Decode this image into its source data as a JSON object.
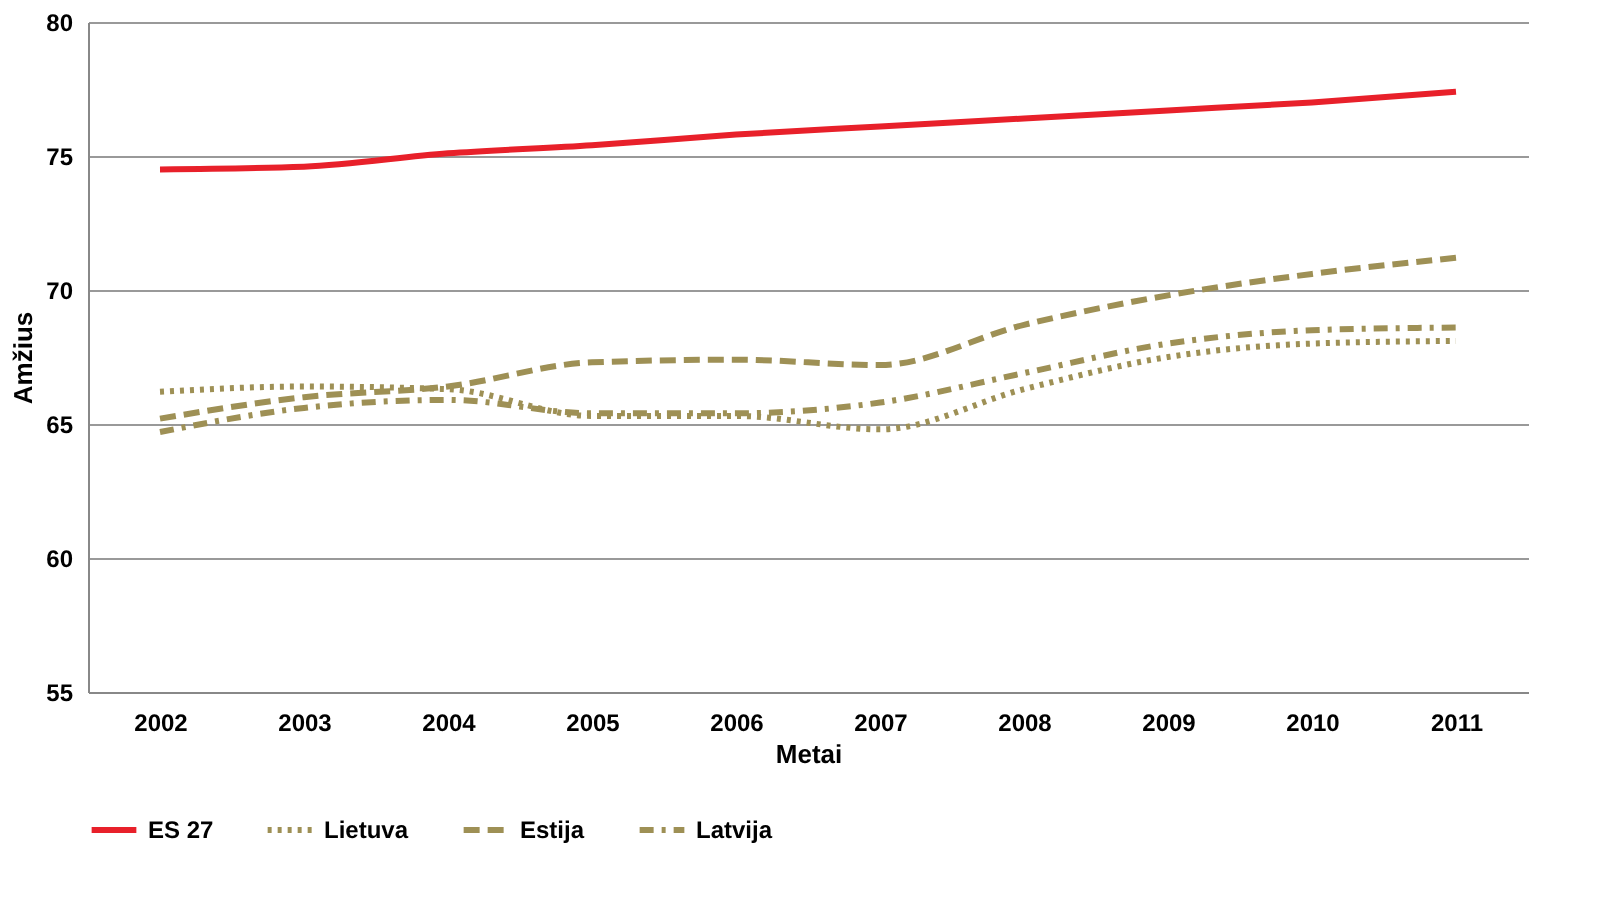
{
  "chart_data": {
    "type": "line",
    "xlabel": "Metai",
    "ylabel": "Amžius",
    "categories": [
      "2002",
      "2003",
      "2004",
      "2005",
      "2006",
      "2007",
      "2008",
      "2009",
      "2010",
      "2011"
    ],
    "series": [
      {
        "name": "ES 27",
        "color": "#e8202a",
        "line_style": "solid",
        "values": [
          74.5,
          74.6,
          75.1,
          75.4,
          75.8,
          76.1,
          76.4,
          76.7,
          77.0,
          77.4
        ]
      },
      {
        "name": "Lietuva",
        "color": "#9e9055",
        "line_style": "dotted",
        "values": [
          66.2,
          66.4,
          66.3,
          65.3,
          65.3,
          64.8,
          66.3,
          67.5,
          68.0,
          68.1
        ]
      },
      {
        "name": "Estija",
        "color": "#9e9055",
        "line_style": "dashed",
        "values": [
          65.2,
          66.0,
          66.4,
          67.3,
          67.4,
          67.2,
          68.7,
          69.8,
          70.6,
          71.2
        ]
      },
      {
        "name": "Latvija",
        "color": "#9e9055",
        "line_style": "dashdot",
        "values": [
          64.7,
          65.6,
          65.9,
          65.4,
          65.4,
          65.8,
          66.9,
          68.0,
          68.5,
          68.6
        ]
      }
    ],
    "ylim": [
      55,
      80
    ],
    "yticks": [
      55,
      60,
      65,
      70,
      75,
      80
    ],
    "grid": "y",
    "legend": "bottom",
    "marker": "none"
  }
}
